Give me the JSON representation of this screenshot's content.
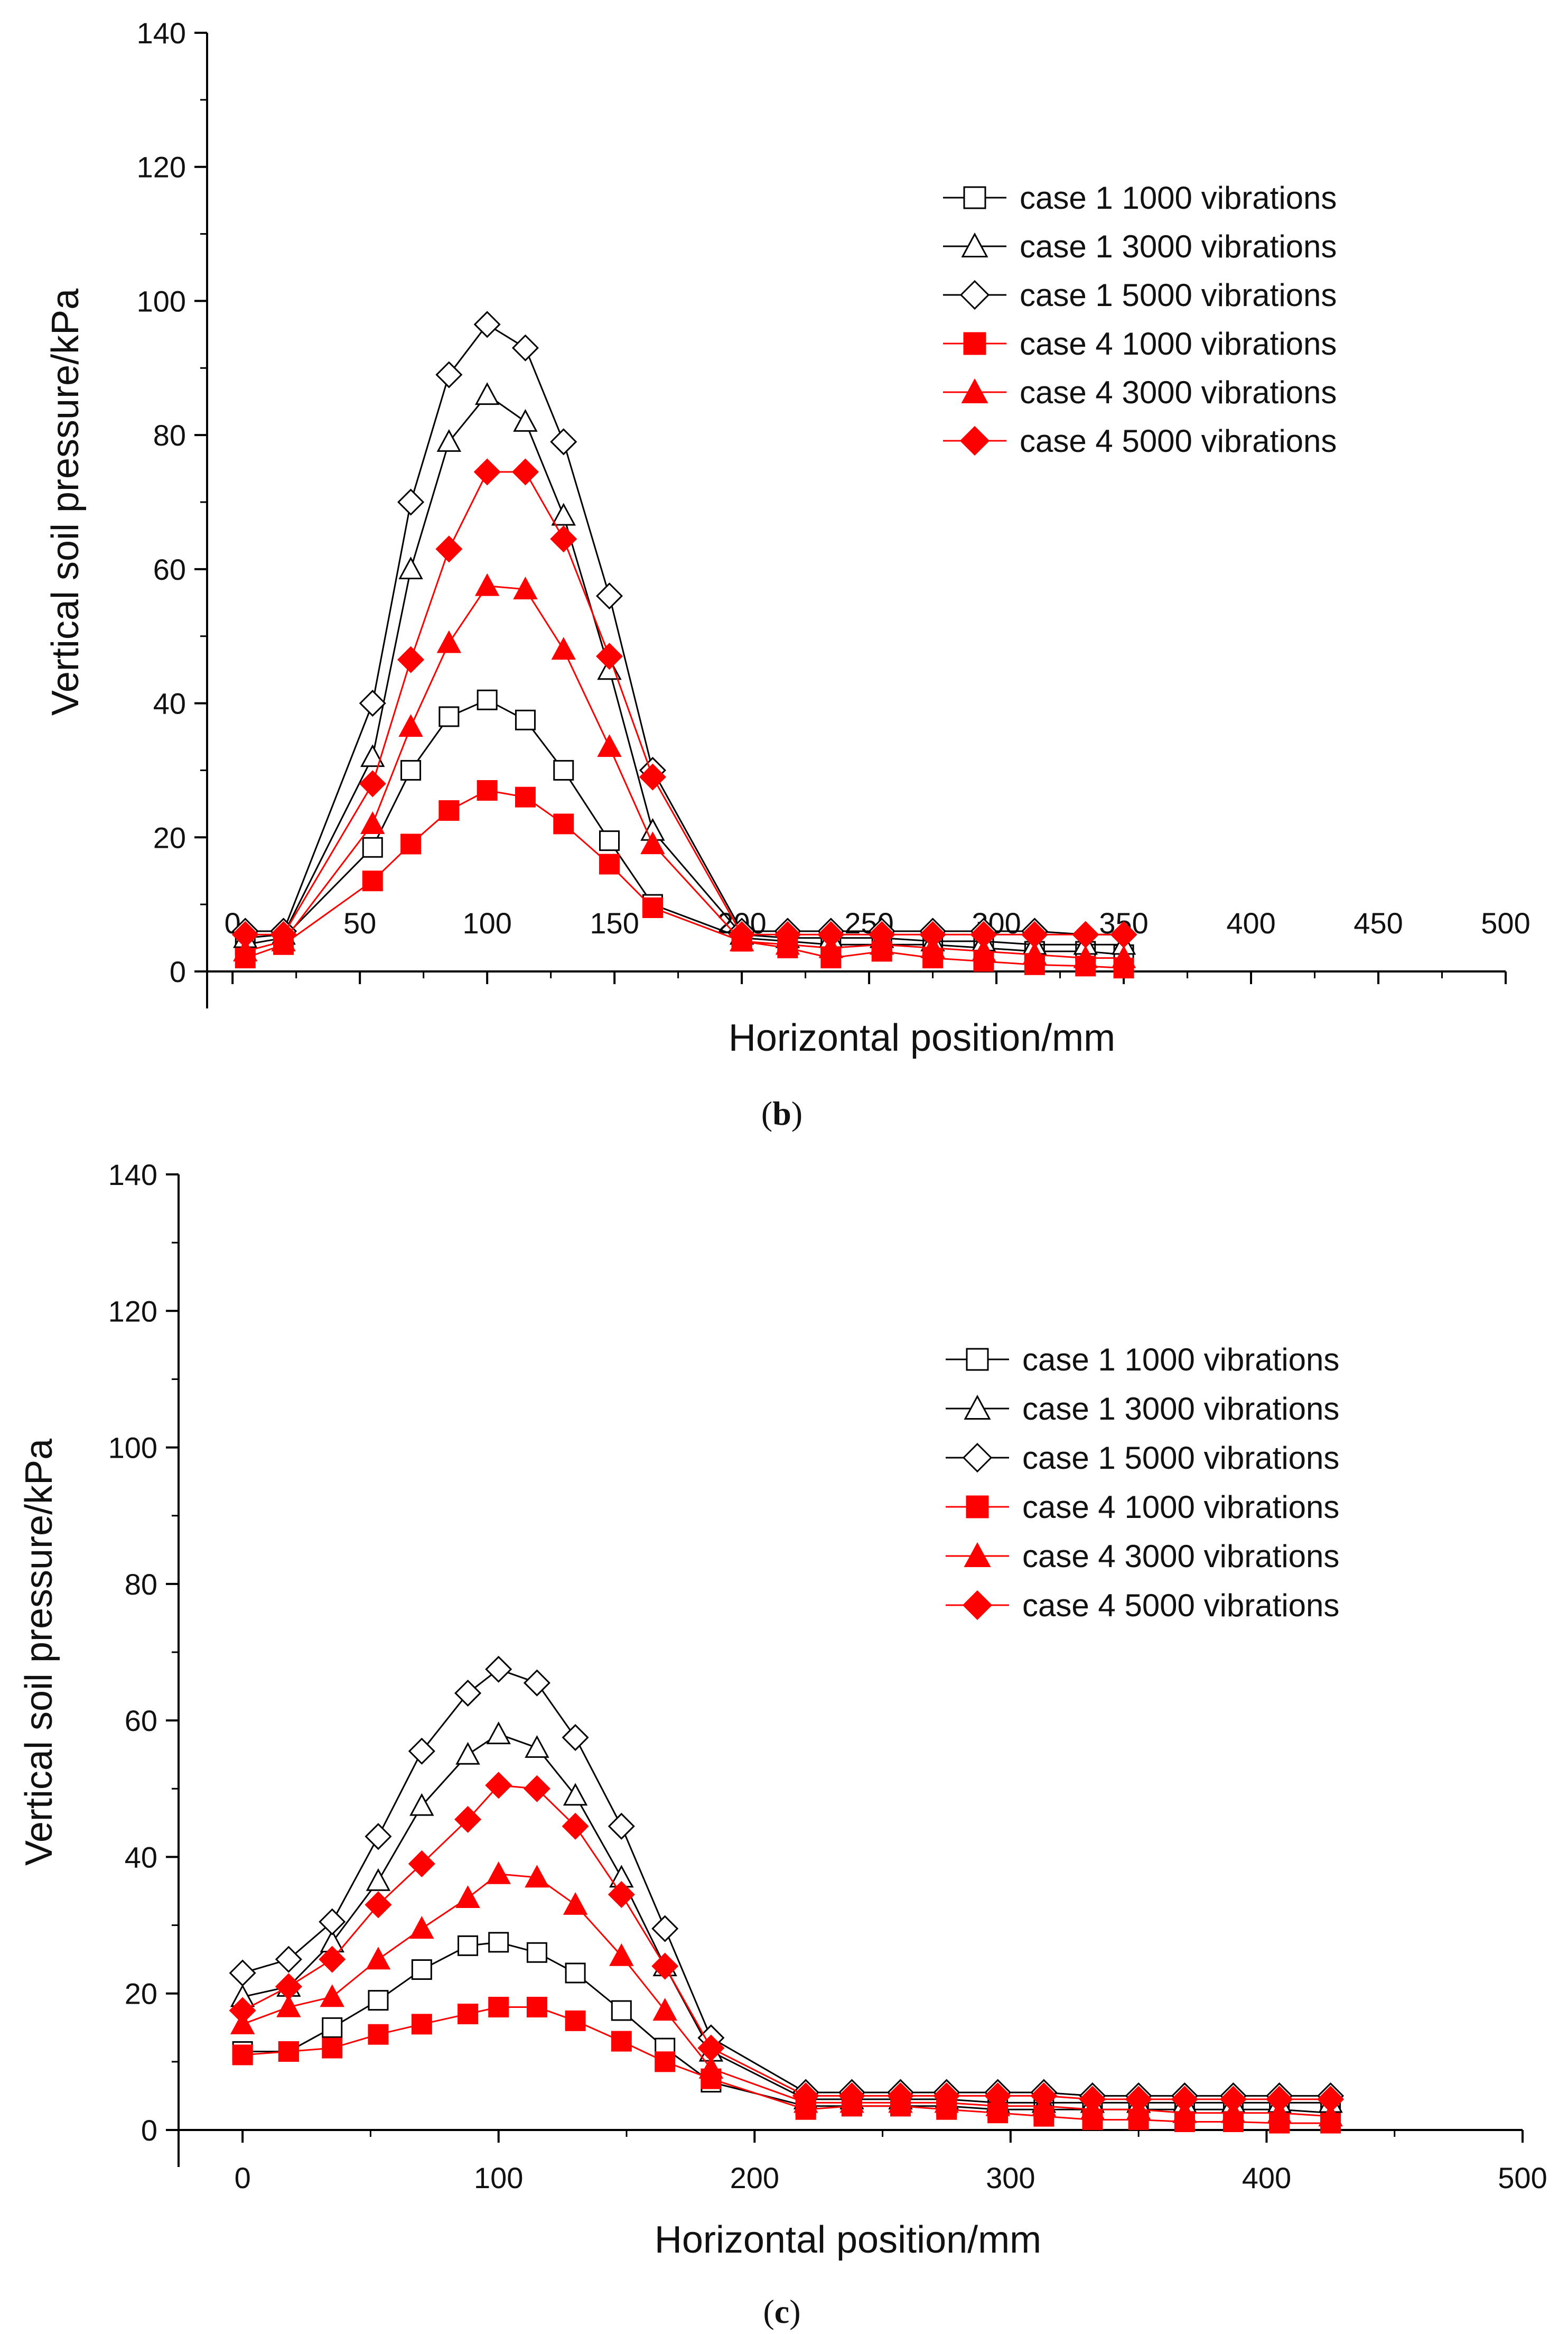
{
  "chart_data": [
    {
      "type": "line",
      "panel_label": "b",
      "xlabel": "Horizontal position/mm",
      "ylabel": "Vertical soil pressure/kPa",
      "xlim": [
        -10,
        500
      ],
      "ylim": [
        0,
        140
      ],
      "x_ticks": [
        0,
        50,
        100,
        150,
        200,
        250,
        300,
        350,
        400,
        450,
        500
      ],
      "y_ticks": [
        0,
        20,
        40,
        60,
        80,
        100,
        120,
        140
      ],
      "x": [
        5,
        20,
        55,
        70,
        85,
        100,
        115,
        130,
        148,
        165,
        200,
        218,
        235,
        255,
        275,
        295,
        315,
        335,
        350
      ],
      "legend_position": "upper-right",
      "series": [
        {
          "name": "case 1 1000 vibrations",
          "marker": "square",
          "filled": false,
          "color": "#000000",
          "values": [
            4,
            5,
            18.5,
            30,
            38,
            40.5,
            37.5,
            30,
            19.5,
            10,
            5,
            4.5,
            4,
            4,
            4,
            3.5,
            3,
            3,
            2.5
          ]
        },
        {
          "name": "case 1 3000 vibrations",
          "marker": "triangle",
          "filled": false,
          "color": "#000000",
          "values": [
            5,
            5.5,
            32,
            60,
            79,
            86,
            82,
            68,
            45,
            21,
            5.5,
            5,
            5,
            5,
            4.5,
            4.5,
            4,
            4,
            4
          ]
        },
        {
          "name": "case 1 5000 vibrations",
          "marker": "diamond",
          "filled": false,
          "color": "#000000",
          "values": [
            6,
            6,
            40,
            70,
            89,
            96.5,
            93,
            79,
            56,
            30,
            6,
            6,
            6,
            6,
            6,
            6,
            6,
            5.5,
            5.5
          ]
        },
        {
          "name": "case 4 1000 vibrations",
          "marker": "square",
          "filled": true,
          "color": "#ff0000",
          "values": [
            2,
            4,
            13.5,
            19,
            24,
            27,
            26,
            22,
            16,
            9.5,
            4.5,
            3.5,
            2,
            3,
            2,
            1.5,
            1,
            0.8,
            0.5
          ]
        },
        {
          "name": "case 4 3000 vibrations",
          "marker": "triangle",
          "filled": true,
          "color": "#ff0000",
          "values": [
            3,
            4.5,
            22,
            36.5,
            49,
            57.5,
            57,
            48,
            33.5,
            19,
            4.5,
            4,
            3.5,
            4,
            3.5,
            3,
            2.5,
            2,
            2
          ]
        },
        {
          "name": "case 4 5000 vibrations",
          "marker": "diamond",
          "filled": true,
          "color": "#ff0000",
          "values": [
            5.5,
            5.5,
            28,
            46.5,
            63,
            74.5,
            74.5,
            64.5,
            47,
            29,
            5.5,
            5.5,
            5.5,
            5.5,
            5.5,
            5.5,
            5.5,
            5.5,
            5.5
          ]
        }
      ]
    },
    {
      "type": "line",
      "panel_label": "c",
      "xlabel": "Horizontal position/mm",
      "ylabel": "Vertical soil pressure/kPa",
      "xlim": [
        -25,
        500
      ],
      "ylim": [
        0,
        140
      ],
      "x_ticks": [
        0,
        100,
        200,
        300,
        400,
        500
      ],
      "y_ticks": [
        0,
        20,
        40,
        60,
        80,
        100,
        120,
        140
      ],
      "x": [
        0,
        18,
        35,
        53,
        70,
        88,
        100,
        115,
        130,
        148,
        165,
        183,
        220,
        238,
        257,
        275,
        295,
        313,
        332,
        350,
        368,
        387,
        405,
        425
      ],
      "legend_position": "upper-right",
      "series": [
        {
          "name": "case 1 1000 vibrations",
          "marker": "square",
          "filled": false,
          "color": "#000000",
          "values": [
            11.5,
            11.5,
            15,
            19,
            23.5,
            27,
            27.5,
            26,
            23,
            17.5,
            12,
            7,
            3.5,
            3.5,
            3.5,
            3.5,
            3,
            3,
            3,
            3,
            3,
            3,
            3,
            2.5
          ]
        },
        {
          "name": "case 1 3000 vibrations",
          "marker": "triangle",
          "filled": false,
          "color": "#000000",
          "values": [
            19.5,
            21,
            27.5,
            36.5,
            47.5,
            55,
            58,
            56,
            49,
            37,
            24,
            11.5,
            4.5,
            4.5,
            4.5,
            4.5,
            4,
            4,
            4,
            4,
            4,
            4,
            4,
            4
          ]
        },
        {
          "name": "case 1 5000 vibrations",
          "marker": "diamond",
          "filled": false,
          "color": "#000000",
          "values": [
            23,
            25,
            30.5,
            43,
            55.5,
            64,
            67.5,
            65.5,
            57.5,
            44.5,
            29.5,
            13.5,
            5.5,
            5.5,
            5.5,
            5.5,
            5.5,
            5.5,
            5,
            5,
            5,
            5,
            5,
            5
          ]
        },
        {
          "name": "case 4 1000 vibrations",
          "marker": "square",
          "filled": true,
          "color": "#ff0000",
          "values": [
            11,
            11.5,
            12,
            14,
            15.5,
            17,
            18,
            18,
            16,
            13,
            10,
            7.5,
            3,
            3.5,
            3.5,
            3,
            2.5,
            2,
            1.5,
            1.5,
            1.2,
            1.2,
            1,
            1
          ]
        },
        {
          "name": "case 4 3000 vibrations",
          "marker": "triangle",
          "filled": true,
          "color": "#ff0000",
          "values": [
            15.5,
            18,
            19.5,
            25,
            29.5,
            34,
            37.5,
            37,
            33,
            25.5,
            17.5,
            9,
            4,
            4,
            4,
            4,
            3.5,
            3.5,
            3,
            3,
            2.5,
            2.5,
            2.5,
            2
          ]
        },
        {
          "name": "case 4 5000 vibrations",
          "marker": "diamond",
          "filled": true,
          "color": "#ff0000",
          "values": [
            17.5,
            21,
            25,
            33,
            39,
            45.5,
            50.5,
            50,
            44.5,
            34.5,
            24,
            12,
            5,
            5,
            5,
            5,
            5,
            5,
            4.5,
            4.5,
            4.5,
            4.5,
            4.5,
            4.5
          ]
        }
      ]
    }
  ]
}
